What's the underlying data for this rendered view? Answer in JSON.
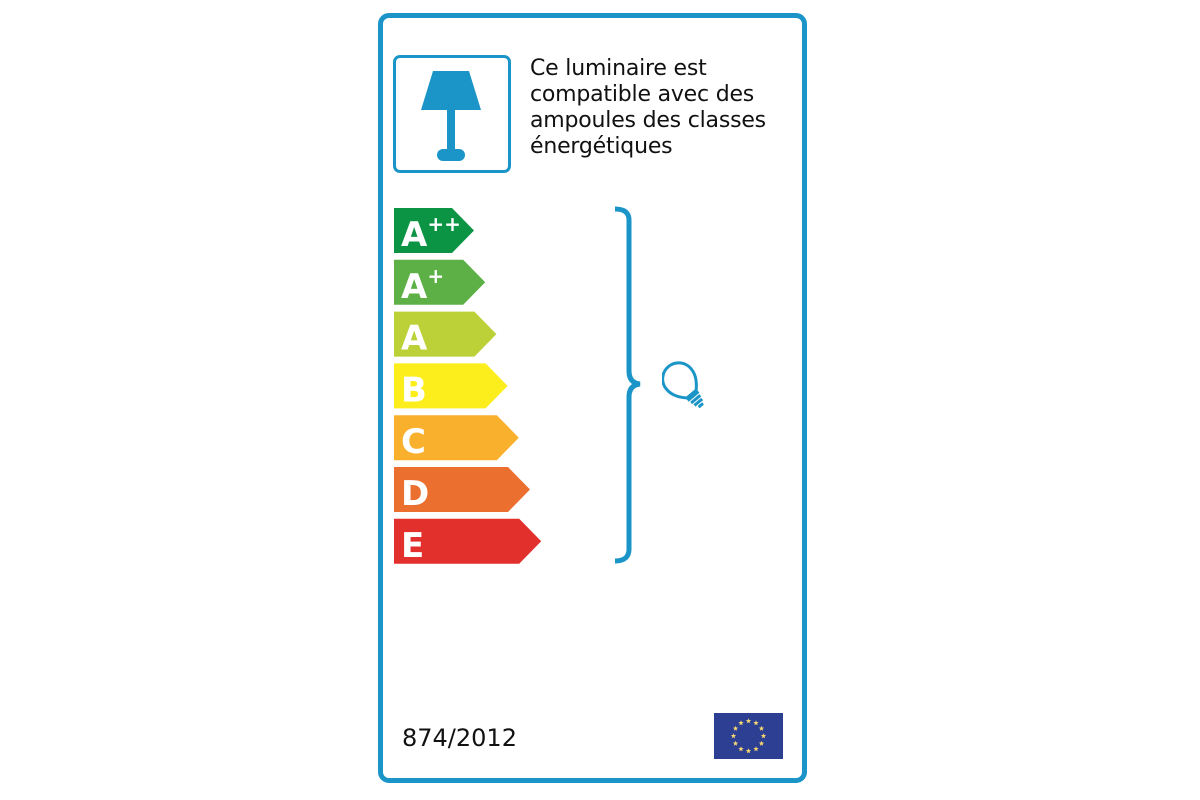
{
  "intro": {
    "lines": [
      "Ce luminaire est",
      "compatible avec des",
      "ampoules des classes",
      "énergétiques"
    ]
  },
  "icons": {
    "lamp": "table-lamp-icon",
    "bulb": "light-bulb-icon",
    "flag": "eu-flag-icon"
  },
  "accent_color": "#1b95c8",
  "energy_classes": [
    {
      "label": "A",
      "sup": "++",
      "color": "#0b9444"
    },
    {
      "label": "A",
      "sup": "+",
      "color": "#5db046"
    },
    {
      "label": "A",
      "sup": "",
      "color": "#bcd137"
    },
    {
      "label": "B",
      "sup": "",
      "color": "#fcee1d"
    },
    {
      "label": "C",
      "sup": "",
      "color": "#f9b02d"
    },
    {
      "label": "D",
      "sup": "",
      "color": "#eb702f"
    },
    {
      "label": "E",
      "sup": "",
      "color": "#e2312d"
    }
  ],
  "regulation": "874/2012"
}
